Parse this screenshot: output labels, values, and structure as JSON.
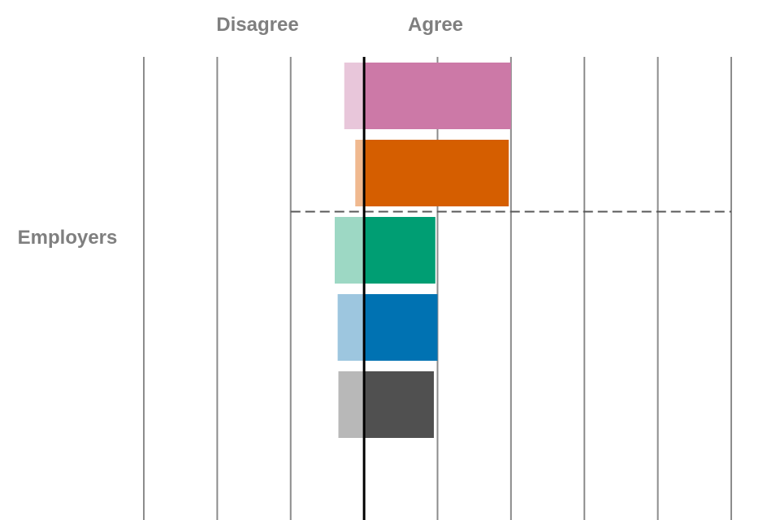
{
  "chart_data": {
    "type": "bar",
    "orientation": "horizontal-diverging",
    "column_headers": {
      "disagree": "Disagree",
      "agree": "Agree"
    },
    "group_label": "Employers",
    "xlim": [
      -3,
      5
    ],
    "grid": true,
    "bars": [
      {
        "disagree": 0.27,
        "agree": 2.0,
        "agree_color": "#cc79a7",
        "disagree_color": "#e8c6da"
      },
      {
        "disagree": 0.12,
        "agree": 1.97,
        "agree_color": "#d55e00",
        "disagree_color": "#f0b98f"
      },
      {
        "disagree": 0.4,
        "agree": 0.97,
        "agree_color": "#009e73",
        "disagree_color": "#9dd8c4"
      },
      {
        "disagree": 0.36,
        "agree": 1.0,
        "agree_color": "#0072b2",
        "disagree_color": "#9dc6df"
      },
      {
        "disagree": 0.35,
        "agree": 0.95,
        "agree_color": "#505050",
        "disagree_color": "#b8b8b8"
      }
    ],
    "separator_after_bar": 2
  }
}
